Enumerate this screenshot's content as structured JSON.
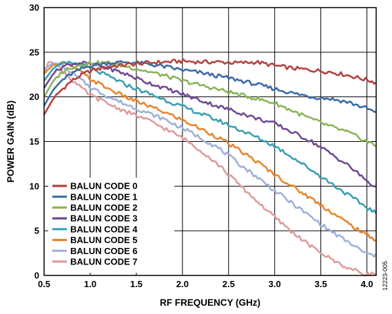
{
  "chart_data": {
    "type": "line",
    "xlabel": "RF FREQUENCY (GHz)",
    "ylabel": "POWER GAIN (dB)",
    "xlim": [
      0.5,
      4.1
    ],
    "ylim": [
      0,
      30
    ],
    "xticks": [
      0.5,
      1.0,
      1.5,
      2.0,
      2.5,
      3.0,
      3.5,
      4.0
    ],
    "xtick_labels": [
      "0.5",
      "1.0",
      "1.5",
      "2.0",
      "2.5",
      "3.0",
      "3.5",
      "4.0"
    ],
    "yticks": [
      0,
      5,
      10,
      15,
      20,
      25,
      30
    ],
    "ytick_labels": [
      "0",
      "5",
      "10",
      "15",
      "20",
      "25",
      "30"
    ],
    "grid": true,
    "legend_position": "bottom-left",
    "figure_id": "12223-005",
    "series": [
      {
        "name": "BALUN CODE 0",
        "color": "#b5413e",
        "x": [
          0.5,
          0.6,
          0.7,
          0.8,
          0.9,
          1.0,
          1.2,
          1.4,
          1.6,
          1.8,
          2.0,
          2.2,
          2.4,
          2.6,
          2.8,
          3.0,
          3.2,
          3.4,
          3.6,
          3.8,
          4.0,
          4.1
        ],
        "values": [
          18.0,
          19.8,
          20.9,
          21.8,
          22.4,
          22.9,
          23.4,
          23.6,
          23.8,
          23.9,
          24.0,
          23.9,
          23.9,
          23.8,
          23.9,
          23.5,
          23.2,
          23.0,
          22.8,
          22.4,
          21.9,
          21.6
        ]
      },
      {
        "name": "BALUN CODE 1",
        "color": "#3c6aa8",
        "x": [
          0.5,
          0.6,
          0.7,
          0.8,
          0.9,
          1.0,
          1.2,
          1.4,
          1.6,
          1.8,
          2.0,
          2.2,
          2.4,
          2.6,
          2.8,
          3.0,
          3.2,
          3.4,
          3.6,
          3.8,
          4.0,
          4.1
        ],
        "values": [
          19.0,
          20.8,
          21.9,
          22.6,
          23.1,
          23.5,
          23.8,
          23.9,
          23.7,
          23.4,
          23.0,
          22.7,
          22.3,
          21.9,
          21.4,
          20.9,
          20.4,
          20.0,
          19.8,
          19.4,
          18.7,
          18.2
        ]
      },
      {
        "name": "BALUN CODE 2",
        "color": "#8cb356",
        "x": [
          0.5,
          0.6,
          0.7,
          0.8,
          0.9,
          1.0,
          1.2,
          1.4,
          1.6,
          1.8,
          2.0,
          2.2,
          2.4,
          2.6,
          2.8,
          3.0,
          3.2,
          3.4,
          3.6,
          3.8,
          4.0,
          4.1
        ],
        "values": [
          20.0,
          21.8,
          22.8,
          23.3,
          23.6,
          23.8,
          23.8,
          23.4,
          22.9,
          22.4,
          21.8,
          21.3,
          20.8,
          20.3,
          19.8,
          19.3,
          18.4,
          17.5,
          16.7,
          16.0,
          15.0,
          14.5
        ]
      },
      {
        "name": "BALUN CODE 3",
        "color": "#6e4a93",
        "x": [
          0.5,
          0.6,
          0.7,
          0.8,
          0.9,
          1.0,
          1.2,
          1.4,
          1.6,
          1.8,
          2.0,
          2.2,
          2.4,
          2.6,
          2.8,
          3.0,
          3.2,
          3.4,
          3.6,
          3.8,
          4.0,
          4.1
        ],
        "values": [
          21.0,
          22.6,
          23.4,
          23.7,
          23.8,
          23.7,
          23.2,
          22.5,
          21.7,
          21.0,
          20.3,
          19.6,
          18.9,
          18.3,
          17.6,
          17.0,
          16.0,
          15.0,
          13.7,
          12.3,
          10.6,
          9.8
        ]
      },
      {
        "name": "BALUN CODE 4",
        "color": "#3a9fb3",
        "x": [
          0.5,
          0.6,
          0.7,
          0.8,
          0.9,
          1.0,
          1.2,
          1.4,
          1.6,
          1.8,
          2.0,
          2.2,
          2.4,
          2.6,
          2.8,
          3.0,
          3.2,
          3.4,
          3.6,
          3.8,
          4.0,
          4.1
        ],
        "values": [
          21.8,
          23.2,
          23.7,
          23.8,
          23.6,
          23.2,
          22.3,
          21.3,
          20.5,
          19.7,
          18.9,
          18.1,
          17.3,
          16.4,
          15.5,
          14.5,
          13.2,
          11.8,
          10.4,
          9.0,
          7.6,
          7.0
        ]
      },
      {
        "name": "BALUN CODE 5",
        "color": "#e8842e",
        "x": [
          0.5,
          0.6,
          0.7,
          0.8,
          0.9,
          1.0,
          1.2,
          1.4,
          1.6,
          1.8,
          2.0,
          2.2,
          2.4,
          2.6,
          2.8,
          3.0,
          3.2,
          3.4,
          3.6,
          3.8,
          4.0,
          4.1
        ],
        "values": [
          22.6,
          23.6,
          23.8,
          23.4,
          22.8,
          22.0,
          20.9,
          19.9,
          19.1,
          18.3,
          17.4,
          16.4,
          15.4,
          14.1,
          12.8,
          11.3,
          9.9,
          8.6,
          7.2,
          5.8,
          4.5,
          4.0
        ]
      },
      {
        "name": "BALUN CODE 6",
        "color": "#9fb0d8",
        "x": [
          0.5,
          0.6,
          0.7,
          0.8,
          0.9,
          1.0,
          1.2,
          1.4,
          1.6,
          1.8,
          2.0,
          2.2,
          2.4,
          2.6,
          2.8,
          3.0,
          3.2,
          3.4,
          3.6,
          3.8,
          4.0,
          4.1
        ],
        "values": [
          23.1,
          23.8,
          23.4,
          22.7,
          21.9,
          21.1,
          20.0,
          19.1,
          18.3,
          17.5,
          16.5,
          15.4,
          14.2,
          12.6,
          11.1,
          9.5,
          8.0,
          6.5,
          5.0,
          3.7,
          2.4,
          2.2
        ]
      },
      {
        "name": "BALUN CODE 7",
        "color": "#dc9c9c",
        "x": [
          0.5,
          0.55,
          0.6,
          0.7,
          0.8,
          0.9,
          1.0,
          1.2,
          1.4,
          1.6,
          1.8,
          2.0,
          2.2,
          2.4,
          2.6,
          2.8,
          3.0,
          3.2,
          3.4,
          3.6,
          3.8,
          4.0,
          4.1
        ],
        "values": [
          22.5,
          24.0,
          23.8,
          23.0,
          21.9,
          21.0,
          20.2,
          19.2,
          18.3,
          17.5,
          16.5,
          15.4,
          14.0,
          12.3,
          10.3,
          8.4,
          6.5,
          4.8,
          3.2,
          1.9,
          0.8,
          0.1,
          0.2
        ]
      }
    ]
  }
}
